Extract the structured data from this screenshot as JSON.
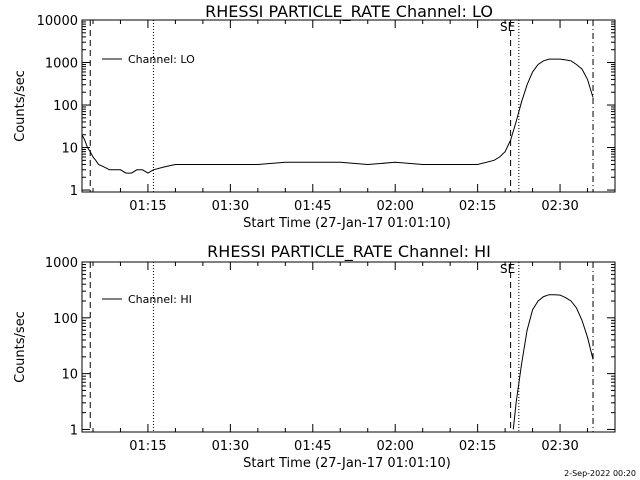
{
  "footer_date": "2-Sep-2022 00:20",
  "charts": [
    {
      "type": "line",
      "title": "RHESSI PARTICLE_RATE Channel: LO",
      "ylabel": "Counts/sec",
      "xlabel": "Start Time (27-Jan-17 01:01:10)",
      "y_scale": "log",
      "ylim": [
        0.9,
        10000
      ],
      "y_ticks": [
        1,
        10,
        100,
        1000,
        10000
      ],
      "y_tick_labels": [
        "1",
        "10",
        "100",
        "1000",
        "10000"
      ],
      "xlim": [
        "01:03:00",
        "02:40:00"
      ],
      "x_ticks": [
        "01:15",
        "01:30",
        "01:45",
        "02:00",
        "02:15",
        "02:30"
      ],
      "legend": {
        "label": "Channel: LO",
        "position": "top-left"
      },
      "event_label": "SE",
      "markers": [
        {
          "style": "dashed",
          "time": "01:04:30"
        },
        {
          "style": "dotted",
          "time": "01:16:00"
        },
        {
          "style": "dashed",
          "time": "02:21:00"
        },
        {
          "style": "dotted",
          "time": "02:22:30"
        },
        {
          "style": "dashdot",
          "time": "02:36:00"
        }
      ],
      "series": [
        {
          "x": [
            "01:03:00",
            "01:03:30",
            "01:04:00",
            "01:04:30",
            "01:05:00",
            "01:05:30",
            "01:06:00",
            "01:07:00",
            "01:08:00",
            "01:09:00",
            "01:10:00",
            "01:11:00",
            "01:12:00",
            "01:13:00",
            "01:14:00",
            "01:15:00",
            "01:16:00",
            "01:18:00",
            "01:20:00",
            "01:25:00",
            "01:30:00",
            "01:35:00",
            "01:40:00",
            "01:45:00",
            "01:50:00",
            "01:55:00",
            "02:00:00",
            "02:05:00",
            "02:10:00",
            "02:15:00",
            "02:18:00",
            "02:19:00",
            "02:20:00",
            "02:21:00",
            "02:22:00",
            "02:23:00",
            "02:24:00",
            "02:25:00",
            "02:26:00",
            "02:27:00",
            "02:28:00",
            "02:29:00",
            "02:30:00",
            "02:31:00",
            "02:32:00",
            "02:33:00",
            "02:34:00",
            "02:35:00",
            "02:36:00"
          ],
          "values": [
            20,
            15,
            10,
            8,
            6,
            5,
            4,
            3.5,
            3,
            3,
            3,
            2.5,
            2.5,
            3,
            3,
            2.5,
            3,
            3.5,
            4,
            4,
            4,
            4,
            4.5,
            4.5,
            4.5,
            4,
            4.5,
            4,
            4,
            4,
            5,
            6,
            8,
            15,
            40,
            120,
            300,
            600,
            900,
            1100,
            1200,
            1200,
            1200,
            1150,
            1100,
            900,
            700,
            400,
            150
          ]
        }
      ]
    },
    {
      "type": "line",
      "title": "RHESSI PARTICLE_RATE Channel: HI",
      "ylabel": "Counts/sec",
      "xlabel": "Start Time (27-Jan-17 01:01:10)",
      "y_scale": "log",
      "ylim": [
        0.9,
        1000
      ],
      "y_ticks": [
        1,
        10,
        100,
        1000
      ],
      "y_tick_labels": [
        "1",
        "10",
        "100",
        "1000"
      ],
      "xlim": [
        "01:03:00",
        "02:40:00"
      ],
      "x_ticks": [
        "01:15",
        "01:30",
        "01:45",
        "02:00",
        "02:15",
        "02:30"
      ],
      "legend": {
        "label": "Channel: HI",
        "position": "top-left"
      },
      "event_label": "SE",
      "markers": [
        {
          "style": "dashed",
          "time": "01:04:30"
        },
        {
          "style": "dotted",
          "time": "01:16:00"
        },
        {
          "style": "dashed",
          "time": "02:21:00"
        },
        {
          "style": "dotted",
          "time": "02:22:30"
        },
        {
          "style": "dashdot",
          "time": "02:36:00"
        }
      ],
      "series": [
        {
          "x": [
            "02:21:30",
            "02:22:00",
            "02:23:00",
            "02:24:00",
            "02:25:00",
            "02:26:00",
            "02:27:00",
            "02:28:00",
            "02:29:00",
            "02:30:00",
            "02:31:00",
            "02:32:00",
            "02:33:00",
            "02:34:00",
            "02:35:00",
            "02:36:00"
          ],
          "values": [
            1,
            3,
            15,
            60,
            140,
            200,
            240,
            260,
            260,
            255,
            230,
            200,
            150,
            90,
            45,
            18
          ]
        }
      ]
    }
  ]
}
